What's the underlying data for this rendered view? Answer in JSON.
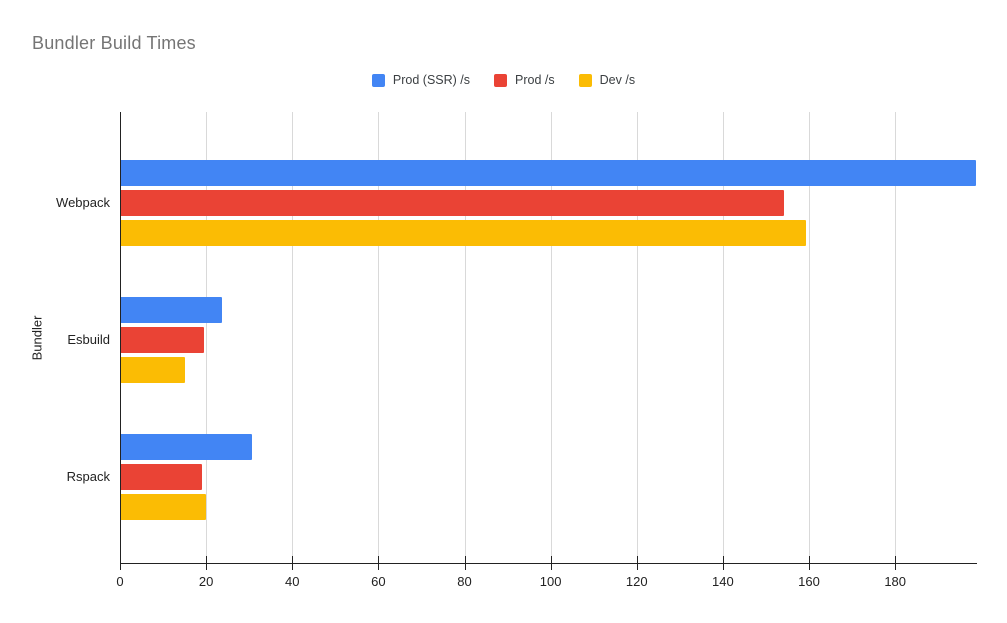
{
  "title": "Bundler Build Times",
  "chart_data": {
    "type": "bar",
    "orientation": "horizontal",
    "title": "Bundler Build Times",
    "xlabel": "",
    "ylabel": "Bundler",
    "categories": [
      "Webpack",
      "Esbuild",
      "Rspack"
    ],
    "series": [
      {
        "name": "Prod (SSR) /s",
        "color": "#4285F4",
        "values": [
          198.7,
          23.6,
          30.7
        ]
      },
      {
        "name": "Prod /s",
        "color": "#EA4335",
        "values": [
          154.3,
          19.4,
          19.0
        ]
      },
      {
        "name": "Dev /s",
        "color": "#FBBC04",
        "values": [
          159.3,
          15.2,
          20.0
        ]
      }
    ],
    "xlim": [
      0,
      199
    ],
    "xticks": [
      0,
      20,
      40,
      60,
      80,
      100,
      120,
      140,
      160,
      180
    ],
    "grid": true,
    "legend_position": "top-center"
  },
  "colors": {
    "background": "#ffffff",
    "title_text": "#757575",
    "axis_text": "#222222",
    "legend_text": "#3c4043",
    "gridline": "#d9d9d9",
    "axis_line": "#222222"
  }
}
